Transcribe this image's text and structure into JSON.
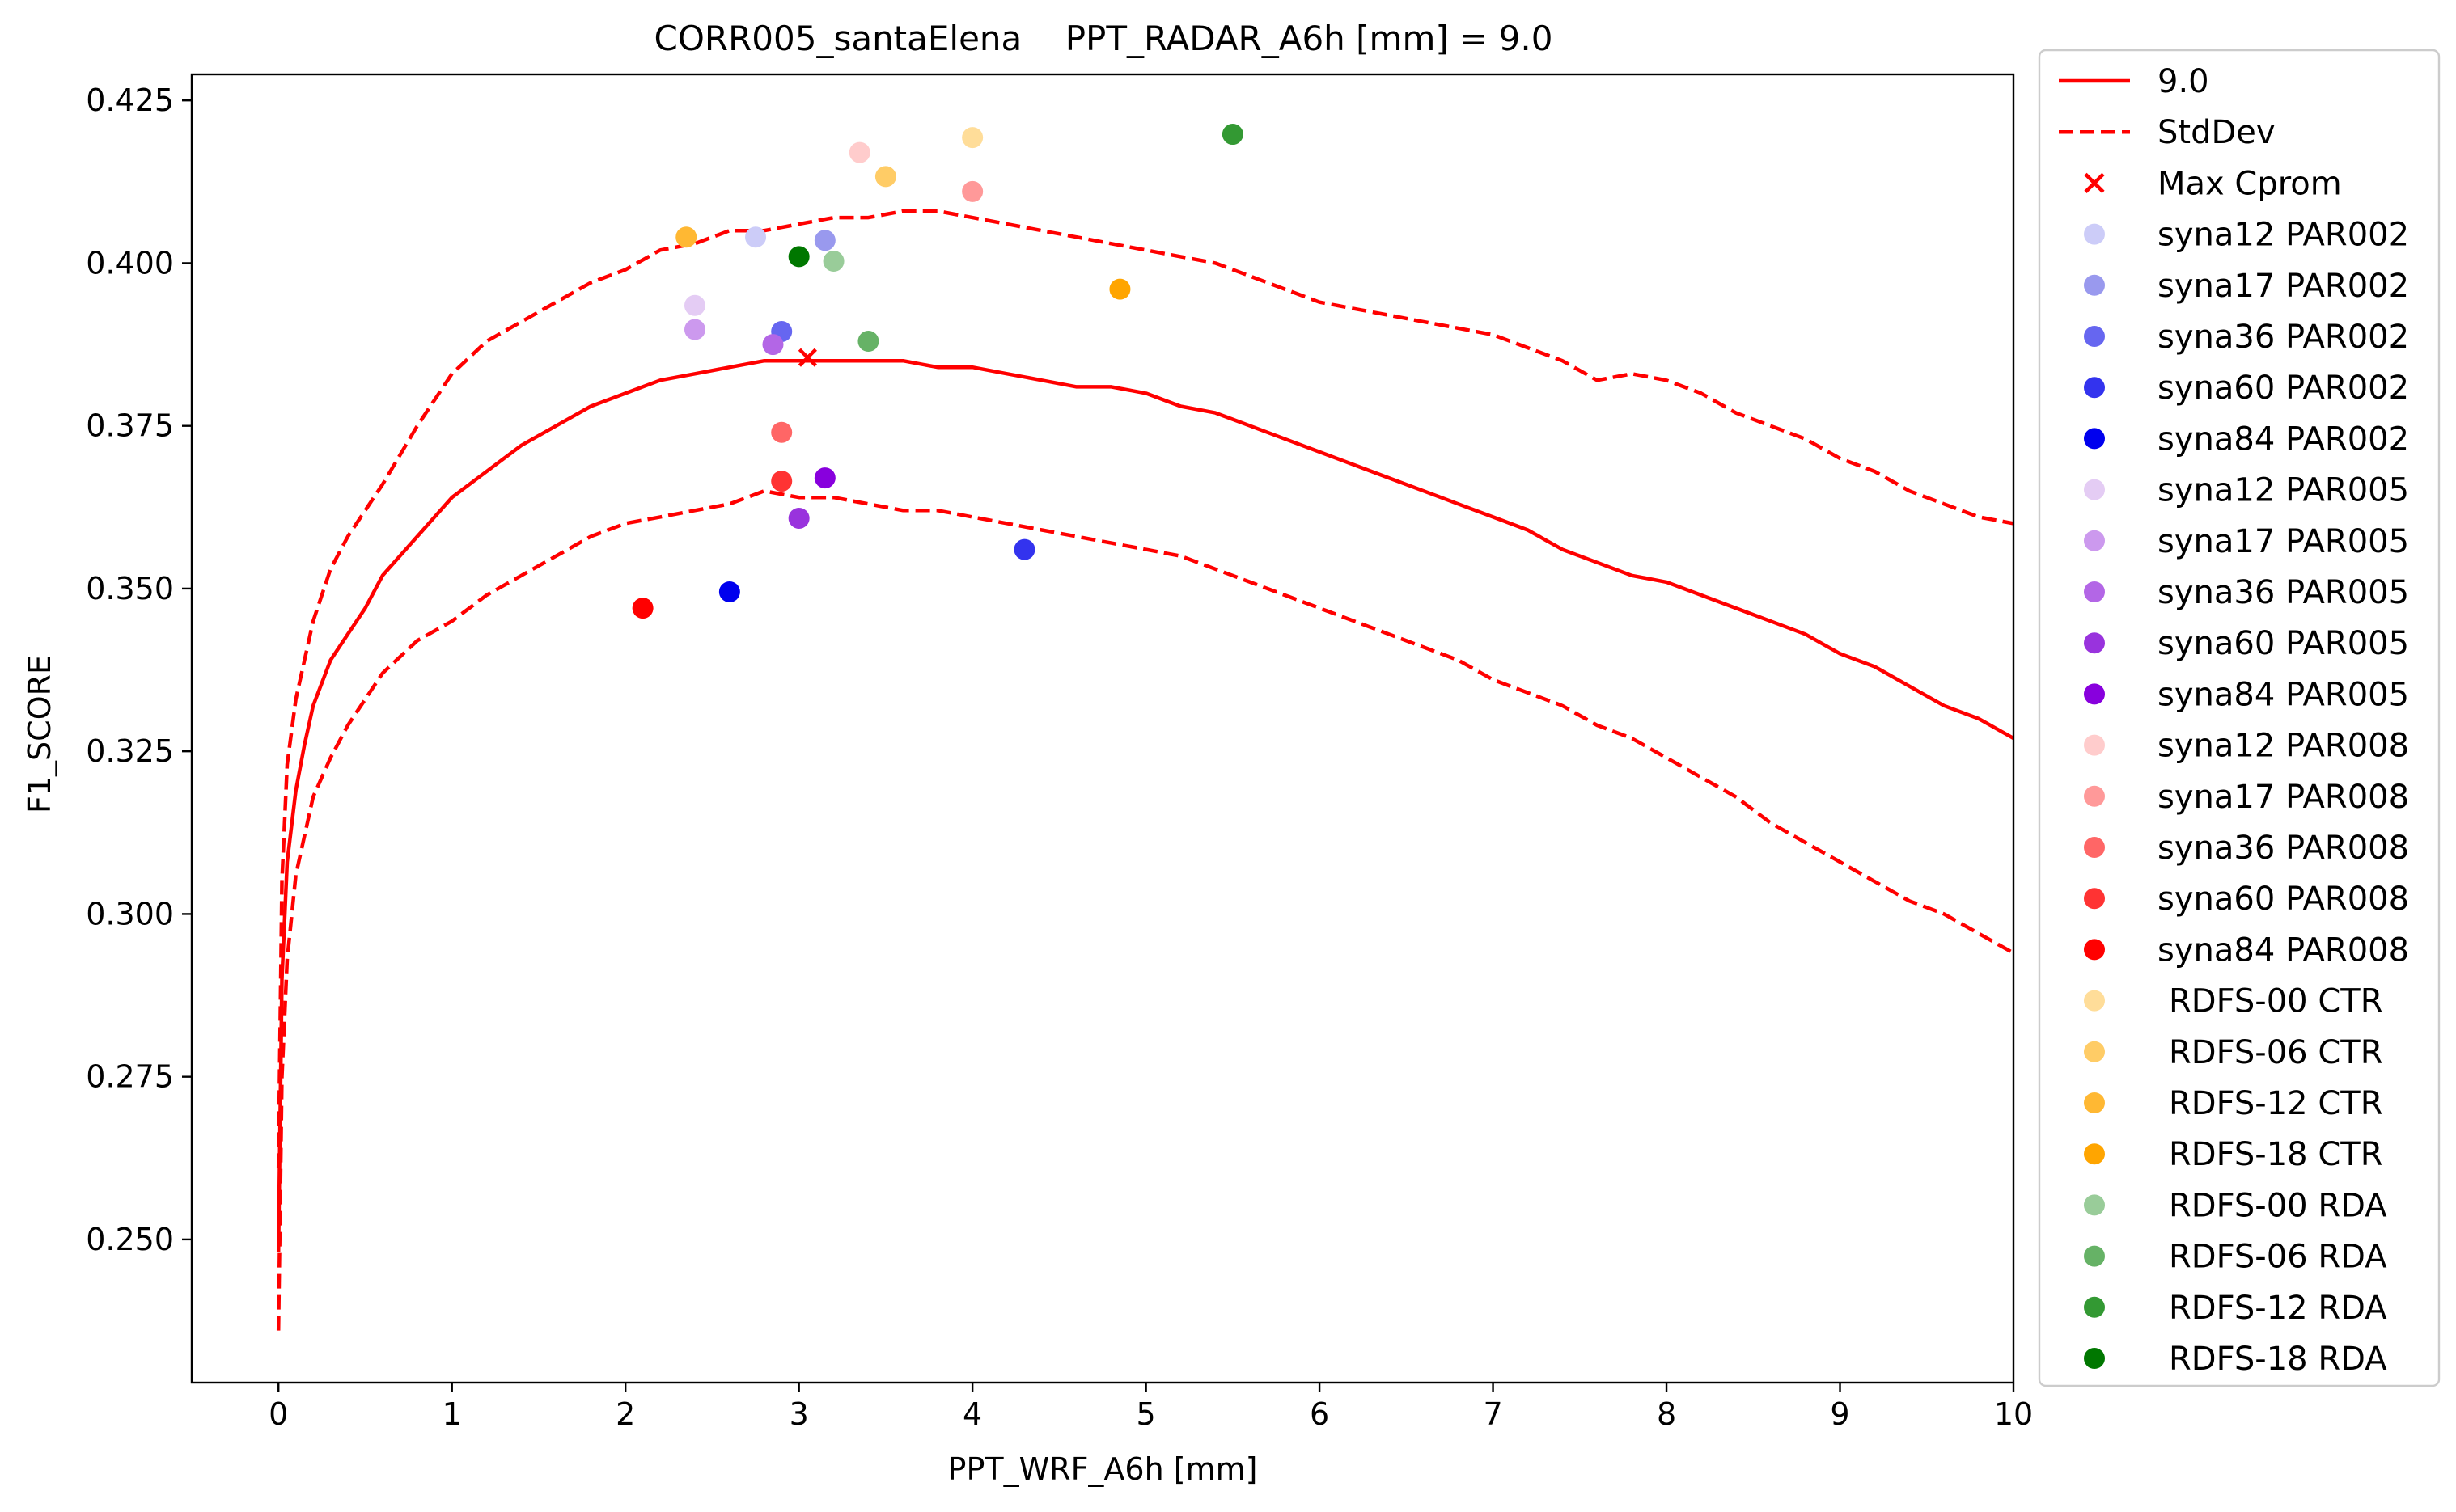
{
  "chart_data": {
    "type": "line",
    "title": "CORR005_santaElena    PPT_RADAR_A6h [mm] = 9.0",
    "xlabel": "PPT_WRF_A6h [mm]",
    "ylabel": "F1_SCORE",
    "xlim": [
      -0.5,
      10
    ],
    "ylim": [
      0.228,
      0.429
    ],
    "xticks": [
      "0",
      "1",
      "2",
      "3",
      "4",
      "5",
      "6",
      "7",
      "8",
      "9",
      "10"
    ],
    "yticks": [
      "0.250",
      "0.275",
      "0.300",
      "0.325",
      "0.350",
      "0.375",
      "0.400",
      "0.425"
    ],
    "grid": false,
    "legend_position": "outside right",
    "lines": [
      {
        "name": "9.0",
        "color": "#ff0000",
        "style": "solid",
        "points": [
          [
            0.0,
            0.248
          ],
          [
            0.02,
            0.29
          ],
          [
            0.05,
            0.308
          ],
          [
            0.1,
            0.319
          ],
          [
            0.15,
            0.326
          ],
          [
            0.2,
            0.332
          ],
          [
            0.3,
            0.339
          ],
          [
            0.4,
            0.343
          ],
          [
            0.5,
            0.347
          ],
          [
            0.6,
            0.352
          ],
          [
            0.8,
            0.358
          ],
          [
            1.0,
            0.364
          ],
          [
            1.2,
            0.368
          ],
          [
            1.4,
            0.372
          ],
          [
            1.6,
            0.375
          ],
          [
            1.8,
            0.378
          ],
          [
            2.0,
            0.38
          ],
          [
            2.2,
            0.382
          ],
          [
            2.4,
            0.383
          ],
          [
            2.6,
            0.384
          ],
          [
            2.8,
            0.385
          ],
          [
            3.0,
            0.385
          ],
          [
            3.2,
            0.385
          ],
          [
            3.4,
            0.385
          ],
          [
            3.6,
            0.385
          ],
          [
            3.8,
            0.384
          ],
          [
            4.0,
            0.384
          ],
          [
            4.2,
            0.383
          ],
          [
            4.4,
            0.382
          ],
          [
            4.6,
            0.381
          ],
          [
            4.8,
            0.381
          ],
          [
            5.0,
            0.38
          ],
          [
            5.2,
            0.378
          ],
          [
            5.4,
            0.377
          ],
          [
            5.6,
            0.375
          ],
          [
            5.8,
            0.373
          ],
          [
            6.0,
            0.371
          ],
          [
            6.2,
            0.369
          ],
          [
            6.4,
            0.367
          ],
          [
            6.6,
            0.365
          ],
          [
            6.8,
            0.363
          ],
          [
            7.0,
            0.361
          ],
          [
            7.2,
            0.359
          ],
          [
            7.4,
            0.356
          ],
          [
            7.6,
            0.354
          ],
          [
            7.8,
            0.352
          ],
          [
            8.0,
            0.351
          ],
          [
            8.2,
            0.349
          ],
          [
            8.4,
            0.347
          ],
          [
            8.6,
            0.345
          ],
          [
            8.8,
            0.343
          ],
          [
            9.0,
            0.34
          ],
          [
            9.2,
            0.338
          ],
          [
            9.4,
            0.335
          ],
          [
            9.6,
            0.332
          ],
          [
            9.8,
            0.33
          ],
          [
            10.0,
            0.327
          ]
        ]
      },
      {
        "name": "StdDev",
        "color": "#ff0000",
        "style": "dashed",
        "points": [
          [
            0.0,
            0.261
          ],
          [
            0.02,
            0.305
          ],
          [
            0.05,
            0.323
          ],
          [
            0.1,
            0.333
          ],
          [
            0.2,
            0.345
          ],
          [
            0.3,
            0.353
          ],
          [
            0.4,
            0.358
          ],
          [
            0.5,
            0.362
          ],
          [
            0.6,
            0.366
          ],
          [
            0.8,
            0.375
          ],
          [
            1.0,
            0.383
          ],
          [
            1.2,
            0.388
          ],
          [
            1.4,
            0.391
          ],
          [
            1.6,
            0.394
          ],
          [
            1.8,
            0.397
          ],
          [
            2.0,
            0.399
          ],
          [
            2.2,
            0.402
          ],
          [
            2.4,
            0.403
          ],
          [
            2.6,
            0.405
          ],
          [
            2.8,
            0.405
          ],
          [
            3.0,
            0.406
          ],
          [
            3.2,
            0.407
          ],
          [
            3.4,
            0.407
          ],
          [
            3.6,
            0.408
          ],
          [
            3.8,
            0.408
          ],
          [
            4.0,
            0.407
          ],
          [
            4.2,
            0.406
          ],
          [
            4.4,
            0.405
          ],
          [
            4.6,
            0.404
          ],
          [
            4.8,
            0.403
          ],
          [
            5.0,
            0.402
          ],
          [
            5.2,
            0.401
          ],
          [
            5.4,
            0.4
          ],
          [
            5.6,
            0.398
          ],
          [
            5.8,
            0.396
          ],
          [
            6.0,
            0.394
          ],
          [
            6.2,
            0.393
          ],
          [
            6.4,
            0.392
          ],
          [
            6.6,
            0.391
          ],
          [
            6.8,
            0.39
          ],
          [
            7.0,
            0.389
          ],
          [
            7.2,
            0.387
          ],
          [
            7.4,
            0.385
          ],
          [
            7.6,
            0.382
          ],
          [
            7.8,
            0.383
          ],
          [
            8.0,
            0.382
          ],
          [
            8.2,
            0.38
          ],
          [
            8.4,
            0.377
          ],
          [
            8.6,
            0.375
          ],
          [
            8.8,
            0.373
          ],
          [
            9.0,
            0.37
          ],
          [
            9.2,
            0.368
          ],
          [
            9.4,
            0.365
          ],
          [
            9.6,
            0.363
          ],
          [
            9.8,
            0.361
          ],
          [
            10.0,
            0.36
          ]
        ]
      },
      {
        "name": "StdDev",
        "color": "#ff0000",
        "style": "dashed",
        "legend": false,
        "points": [
          [
            0.0,
            0.236
          ],
          [
            0.02,
            0.275
          ],
          [
            0.05,
            0.293
          ],
          [
            0.1,
            0.306
          ],
          [
            0.2,
            0.318
          ],
          [
            0.3,
            0.324
          ],
          [
            0.4,
            0.329
          ],
          [
            0.5,
            0.333
          ],
          [
            0.6,
            0.337
          ],
          [
            0.8,
            0.342
          ],
          [
            1.0,
            0.345
          ],
          [
            1.2,
            0.349
          ],
          [
            1.4,
            0.352
          ],
          [
            1.6,
            0.355
          ],
          [
            1.8,
            0.358
          ],
          [
            2.0,
            0.36
          ],
          [
            2.2,
            0.361
          ],
          [
            2.4,
            0.362
          ],
          [
            2.6,
            0.363
          ],
          [
            2.8,
            0.365
          ],
          [
            3.0,
            0.364
          ],
          [
            3.2,
            0.364
          ],
          [
            3.4,
            0.363
          ],
          [
            3.6,
            0.362
          ],
          [
            3.8,
            0.362
          ],
          [
            4.0,
            0.361
          ],
          [
            4.2,
            0.36
          ],
          [
            4.4,
            0.359
          ],
          [
            4.6,
            0.358
          ],
          [
            4.8,
            0.357
          ],
          [
            5.0,
            0.356
          ],
          [
            5.2,
            0.355
          ],
          [
            5.4,
            0.353
          ],
          [
            5.6,
            0.351
          ],
          [
            5.8,
            0.349
          ],
          [
            6.0,
            0.347
          ],
          [
            6.2,
            0.345
          ],
          [
            6.4,
            0.343
          ],
          [
            6.6,
            0.341
          ],
          [
            6.8,
            0.339
          ],
          [
            7.0,
            0.336
          ],
          [
            7.2,
            0.334
          ],
          [
            7.4,
            0.332
          ],
          [
            7.6,
            0.329
          ],
          [
            7.8,
            0.327
          ],
          [
            8.0,
            0.324
          ],
          [
            8.2,
            0.321
          ],
          [
            8.4,
            0.318
          ],
          [
            8.6,
            0.314
          ],
          [
            8.8,
            0.311
          ],
          [
            9.0,
            0.308
          ],
          [
            9.2,
            0.305
          ],
          [
            9.4,
            0.302
          ],
          [
            9.6,
            0.3
          ],
          [
            9.8,
            0.297
          ],
          [
            10.0,
            0.294
          ]
        ]
      }
    ],
    "marker": {
      "name": "Max Cprom",
      "color": "#ff0000",
      "symbol": "x",
      "x": 3.05,
      "y": 0.3855
    },
    "scatter": [
      {
        "name": "syna12 PAR002",
        "color": "#ccccf8",
        "x": 2.75,
        "y": 0.404
      },
      {
        "name": "syna17 PAR002",
        "color": "#9999ee",
        "x": 3.15,
        "y": 0.4035
      },
      {
        "name": "syna36 PAR002",
        "color": "#6666f0",
        "x": 2.9,
        "y": 0.3895
      },
      {
        "name": "syna60 PAR002",
        "color": "#3333ee",
        "x": 4.3,
        "y": 0.356
      },
      {
        "name": "syna84 PAR002",
        "color": "#0000ee",
        "x": 2.6,
        "y": 0.3495
      },
      {
        "name": "syna12 PAR005",
        "color": "#e4ccf4",
        "x": 2.4,
        "y": 0.3935
      },
      {
        "name": "syna17 PAR005",
        "color": "#cc99ee",
        "x": 2.4,
        "y": 0.3898
      },
      {
        "name": "syna36 PAR005",
        "color": "#b366e6",
        "x": 2.85,
        "y": 0.3875
      },
      {
        "name": "syna60 PAR005",
        "color": "#9933dd",
        "x": 3.0,
        "y": 0.3608
      },
      {
        "name": "syna84 PAR005",
        "color": "#8800dd",
        "x": 3.15,
        "y": 0.367
      },
      {
        "name": "syna12 PAR008",
        "color": "#ffcccc",
        "x": 3.35,
        "y": 0.417
      },
      {
        "name": "syna17 PAR008",
        "color": "#ff9999",
        "x": 4.0,
        "y": 0.411
      },
      {
        "name": "syna36 PAR008",
        "color": "#ff6666",
        "x": 2.9,
        "y": 0.374
      },
      {
        "name": "syna60 PAR008",
        "color": "#ff3333",
        "x": 2.9,
        "y": 0.3665
      },
      {
        "name": "syna84 PAR008",
        "color": "#ff0000",
        "x": 2.1,
        "y": 0.347
      },
      {
        "name": "RDFS-00 CTR",
        "color": "#ffdd99",
        "x": 4.0,
        "y": 0.4193
      },
      {
        "name": "RDFS-06 CTR",
        "color": "#ffcc66",
        "x": 3.5,
        "y": 0.4133
      },
      {
        "name": "RDFS-12 CTR",
        "color": "#ffb833",
        "x": 2.35,
        "y": 0.404
      },
      {
        "name": "RDFS-18 CTR",
        "color": "#ffa500",
        "x": 4.85,
        "y": 0.396
      },
      {
        "name": "RDFS-00 RDA",
        "color": "#99cc99",
        "x": 3.2,
        "y": 0.4003
      },
      {
        "name": "RDFS-06 RDA",
        "color": "#66b266",
        "x": 3.4,
        "y": 0.388
      },
      {
        "name": "RDFS-12 RDA",
        "color": "#339933",
        "x": 5.5,
        "y": 0.4198
      },
      {
        "name": "RDFS-18 RDA",
        "color": "#007700",
        "x": 3.0,
        "y": 0.401
      }
    ],
    "legend": [
      "9.0",
      "StdDev",
      "Max Cprom",
      "syna12 PAR002",
      "syna17 PAR002",
      "syna36 PAR002",
      "syna60 PAR002",
      "syna84 PAR002",
      "syna12 PAR005",
      "syna17 PAR005",
      "syna36 PAR005",
      "syna60 PAR005",
      "syna84 PAR005",
      "syna12 PAR008",
      "syna17 PAR008",
      "syna36 PAR008",
      "syna60 PAR008",
      "syna84 PAR008",
      "RDFS-00 CTR",
      "RDFS-06 CTR",
      "RDFS-12 CTR",
      "RDFS-18 CTR",
      "RDFS-00 RDA",
      "RDFS-06 RDA",
      "RDFS-12 RDA",
      "RDFS-18 RDA"
    ]
  }
}
